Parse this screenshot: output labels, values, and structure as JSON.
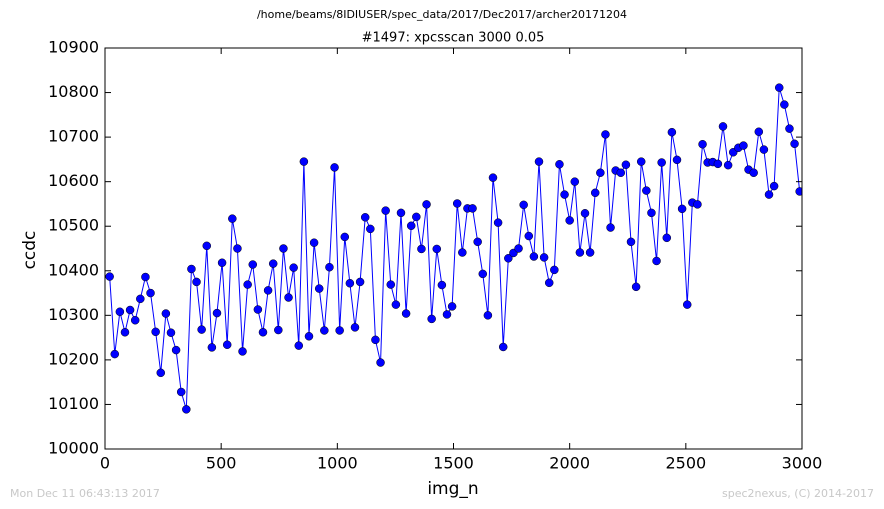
{
  "chart_data": {
    "type": "line",
    "suptitle": "/home/beams/8IDIUSER/spec_data/2017/Dec2017/archer20171204",
    "title": "#1497: xpcsscan 3000 0.05",
    "xlabel": "img_n",
    "ylabel": "ccdc",
    "footer_left": "Mon Dec 11 06:43:13 2017",
    "footer_right": "spec2nexus, (C) 2014-2017",
    "xlim": [
      0,
      3000
    ],
    "xticks": [
      0,
      500,
      1000,
      1500,
      2000,
      2500,
      3000
    ],
    "ylim": [
      10000,
      10900
    ],
    "yticks": [
      10000,
      10100,
      10200,
      10300,
      10400,
      10500,
      10600,
      10700,
      10800,
      10900
    ],
    "marker": "o",
    "series": [
      {
        "color": "#0000ff",
        "x": [
          20,
          42,
          64,
          86,
          108,
          130,
          152,
          174,
          196,
          218,
          240,
          262,
          284,
          306,
          328,
          350,
          372,
          394,
          416,
          438,
          460,
          482,
          504,
          526,
          548,
          570,
          592,
          614,
          636,
          658,
          680,
          702,
          724,
          746,
          768,
          790,
          812,
          834,
          856,
          878,
          900,
          922,
          944,
          966,
          988,
          1010,
          1032,
          1054,
          1076,
          1098,
          1120,
          1142,
          1164,
          1186,
          1208,
          1230,
          1252,
          1274,
          1296,
          1318,
          1340,
          1362,
          1384,
          1406,
          1428,
          1450,
          1472,
          1494,
          1516,
          1538,
          1560,
          1582,
          1604,
          1626,
          1648,
          1670,
          1692,
          1714,
          1736,
          1758,
          1780,
          1802,
          1824,
          1846,
          1868,
          1890,
          1912,
          1934,
          1956,
          1978,
          2000,
          2022,
          2044,
          2066,
          2088,
          2110,
          2132,
          2154,
          2176,
          2198,
          2220,
          2242,
          2264,
          2286,
          2308,
          2330,
          2352,
          2374,
          2396,
          2418,
          2440,
          2462,
          2484,
          2506,
          2528,
          2550,
          2572,
          2594,
          2616,
          2638,
          2660,
          2682,
          2704,
          2726,
          2748,
          2770,
          2792,
          2814,
          2836,
          2858,
          2880,
          2902,
          2924,
          2946,
          2968,
          2990
        ],
        "values": [
          10387,
          10213,
          10308,
          10262,
          10312,
          10289,
          10337,
          10386,
          10350,
          10263,
          10171,
          10304,
          10261,
          10222,
          10128,
          10089,
          10404,
          10375,
          10268,
          10456,
          10228,
          10305,
          10418,
          10234,
          10517,
          10450,
          10219,
          10369,
          10414,
          10313,
          10262,
          10356,
          10416,
          10267,
          10450,
          10340,
          10407,
          10232,
          10645,
          10253,
          10463,
          10360,
          10266,
          10408,
          10632,
          10266,
          10476,
          10372,
          10273,
          10375,
          10520,
          10494,
          10245,
          10194,
          10535,
          10369,
          10324,
          10530,
          10304,
          10501,
          10521,
          10449,
          10549,
          10292,
          10449,
          10368,
          10302,
          10320,
          10551,
          10441,
          10540,
          10540,
          10465,
          10393,
          10300,
          10609,
          10508,
          10229,
          10428,
          10440,
          10450,
          10548,
          10478,
          10432,
          10645,
          10430,
          10373,
          10402,
          10639,
          10571,
          10513,
          10600,
          10441,
          10529,
          10441,
          10575,
          10620,
          10706,
          10497,
          10625,
          10620,
          10638,
          10465,
          10364,
          10645,
          10580,
          10530,
          10422,
          10643,
          10474,
          10711,
          10649,
          10539,
          10324,
          10553,
          10549,
          10684,
          10643,
          10644,
          10640,
          10724,
          10637,
          10666,
          10676,
          10681,
          10627,
          10620,
          10712,
          10672,
          10571,
          10590,
          10811,
          10773,
          10719,
          10685,
          10578
        ]
      }
    ]
  }
}
